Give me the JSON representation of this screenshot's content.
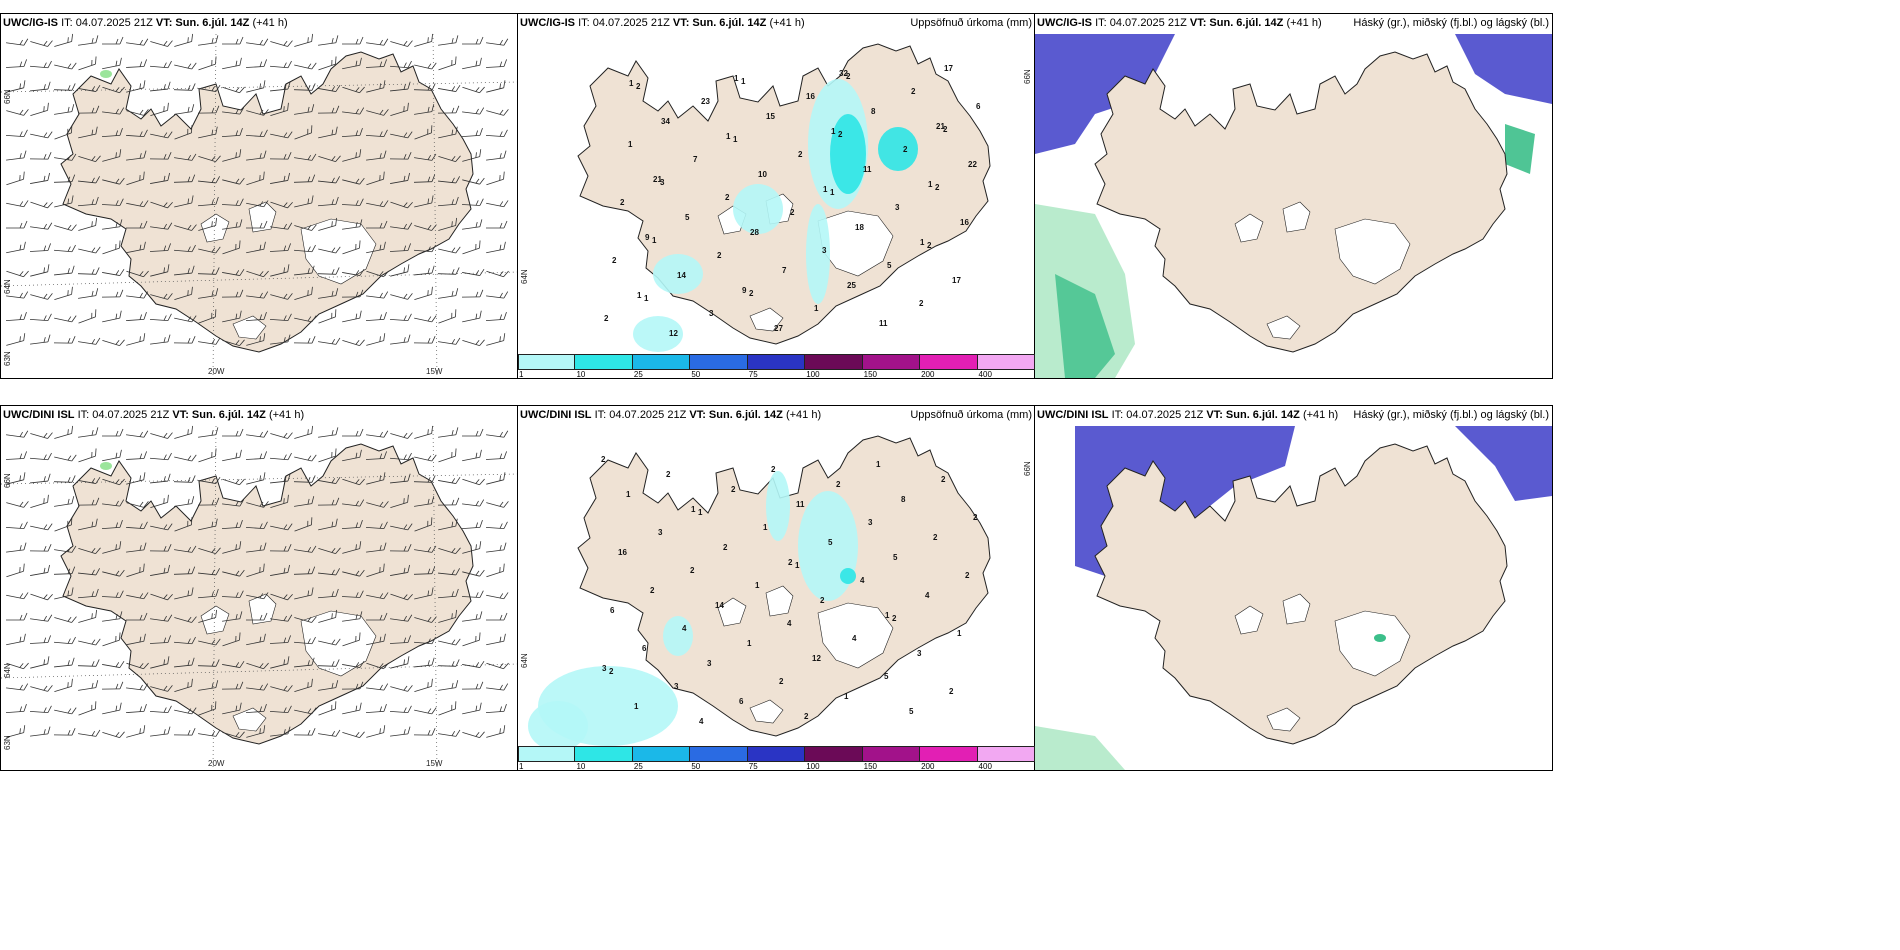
{
  "panels": {
    "wind_ig": {
      "model": "UWC/IG-IS",
      "it": "IT: 04.07.2025 21Z",
      "vt": "VT: Sun. 6.júl. 14Z",
      "lead": "(+41 h)"
    },
    "precip_ig": {
      "model": "UWC/IG-IS",
      "it": "IT: 04.07.2025 21Z",
      "vt": "VT: Sun. 6.júl. 14Z",
      "lead": "(+41 h)",
      "right_title": "Uppsöfnuð úrkoma (mm)"
    },
    "cloud_ig": {
      "model": "UWC/IG-IS",
      "it": "IT: 04.07.2025 21Z",
      "vt": "VT: Sun. 6.júl. 14Z",
      "lead": "(+41 h)",
      "right_title": "Háský (gr.), miðský (fj.bl.) og lágský (bl.)"
    },
    "wind_dini": {
      "model": "UWC/DINI ISL",
      "it": "IT: 04.07.2025 21Z",
      "vt": "VT: Sun. 6.júl. 14Z",
      "lead": "(+41 h)"
    },
    "precip_dini": {
      "model": "UWC/DINI ISL",
      "it": "IT: 04.07.2025 21Z",
      "vt": "VT: Sun. 6.júl. 14Z",
      "lead": "(+41 h)",
      "right_title": "Uppsöfnuð úrkoma (mm)"
    },
    "cloud_dini": {
      "model": "UWC/DINI ISL",
      "it": "IT: 04.07.2025 21Z",
      "vt": "VT: Sun. 6.júl. 14Z",
      "lead": "(+41 h)",
      "right_title": "Háský (gr.), miðský (fj.bl.) og lágský (bl.)"
    }
  },
  "axes": {
    "lon_20": "20W",
    "lon_15": "15W",
    "lat_66": "66N",
    "lat_64": "64N",
    "lat_65": "65N",
    "lat_63": "63N"
  },
  "colorbar": {
    "ticks": [
      "1",
      "10",
      "25",
      "50",
      "75",
      "100",
      "150",
      "200",
      "400"
    ],
    "colors": [
      "#b4f7f7",
      "#2ee6e6",
      "#1bb8e8",
      "#2a6be3",
      "#2a34c4",
      "#6b0a57",
      "#a2128a",
      "#e21fb4",
      "#f2a8f2"
    ]
  },
  "colors": {
    "land": "#efe2d4",
    "coast": "#222222",
    "glacier": "#ffffff",
    "precip_light": "#b4f7f7",
    "precip_mid": "#2ee6e6",
    "cloud_high": "#5a5ad0",
    "cloud_mid": "#3cbf8a",
    "cloud_low": "#a8e6c0"
  },
  "precip_labels_ig": [
    "1",
    "1",
    "1",
    "1",
    "1",
    "1",
    "1",
    "1",
    "9",
    "9",
    "32",
    "21",
    "21",
    "28",
    "25",
    "17",
    "34",
    "10",
    "18",
    "17",
    "12",
    "15",
    "11",
    "16",
    "14",
    "27",
    "8",
    "22",
    "5",
    "7",
    "11",
    "6",
    "7",
    "2",
    "5",
    "2",
    "23",
    "2",
    "3",
    "2",
    "3",
    "16",
    "2",
    "2",
    "2",
    "1",
    "2",
    "1",
    "2",
    "3",
    "2",
    "2",
    "1",
    "1",
    "2",
    "1",
    "1",
    "2",
    "2",
    "1",
    "2",
    "2",
    "2",
    "3"
  ],
  "precip_labels_dini": [
    "1",
    "2",
    "1",
    "3",
    "4",
    "11",
    "5",
    "6",
    "3",
    "2",
    "8",
    "16",
    "14",
    "12",
    "5",
    "1",
    "2",
    "2",
    "3",
    "1",
    "2",
    "5",
    "4",
    "6",
    "6",
    "2",
    "2",
    "2",
    "1",
    "1",
    "2",
    "3",
    "1",
    "4",
    "2",
    "2",
    "1",
    "4",
    "1",
    "3",
    "2",
    "3",
    "2",
    "4",
    "2",
    "1",
    "2",
    "2",
    "4",
    "5",
    "2",
    "1",
    "1",
    "2",
    "2"
  ]
}
